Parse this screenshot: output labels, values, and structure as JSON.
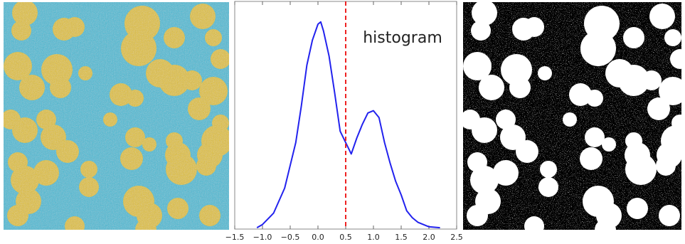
{
  "chart_data": {
    "type": "line",
    "annotation": "histogram",
    "x": [
      -1.1,
      -1.0,
      -0.8,
      -0.6,
      -0.4,
      -0.3,
      -0.2,
      -0.1,
      0.0,
      0.05,
      0.1,
      0.2,
      0.3,
      0.4,
      0.5,
      0.6,
      0.7,
      0.8,
      0.9,
      1.0,
      1.1,
      1.2,
      1.3,
      1.4,
      1.5,
      1.6,
      1.7,
      1.8,
      2.0,
      2.2
    ],
    "values": [
      0.006,
      0.02,
      0.07,
      0.18,
      0.38,
      0.54,
      0.72,
      0.83,
      0.9,
      0.91,
      0.87,
      0.76,
      0.6,
      0.43,
      0.38,
      0.33,
      0.4,
      0.46,
      0.51,
      0.52,
      0.49,
      0.38,
      0.29,
      0.21,
      0.15,
      0.08,
      0.05,
      0.03,
      0.01,
      0.006
    ],
    "color": "#2222ee",
    "threshold": 0.5,
    "threshold_color": "#ee2222",
    "xlim": [
      -1.5,
      2.5
    ],
    "ylim": [
      0,
      1
    ],
    "xticks": [
      {
        "value": -1.5,
        "label": "−1.5"
      },
      {
        "value": -1.0,
        "label": "−1.0"
      },
      {
        "value": -0.5,
        "label": "−0.5"
      },
      {
        "value": 0.0,
        "label": "0.0"
      },
      0.5,
      {
        "value": 1.0,
        "label": "1.0"
      },
      1.5,
      {
        "value": 2.0,
        "label": "2.0"
      },
      2.5
    ]
  }
}
